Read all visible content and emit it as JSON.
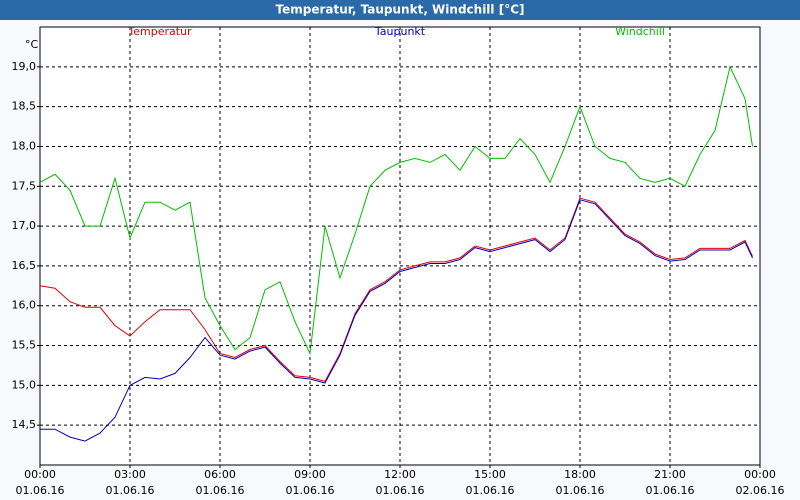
{
  "chart_data": {
    "type": "line",
    "title": "Temperatur, Taupunkt, Windchill [°C]",
    "y_unit": "°C",
    "x": [
      0,
      0.5,
      1,
      1.5,
      2,
      2.5,
      3,
      3.5,
      4,
      4.5,
      5,
      5.5,
      6,
      6.5,
      7,
      7.5,
      8,
      8.5,
      9,
      9.5,
      10,
      10.5,
      11,
      11.5,
      12,
      12.5,
      13,
      13.5,
      14,
      14.5,
      15,
      15.5,
      16,
      16.5,
      17,
      17.5,
      18,
      18.5,
      19,
      19.5,
      20,
      20.5,
      21,
      21.5,
      22,
      22.5,
      23,
      23.5,
      23.75
    ],
    "series": [
      {
        "name": "Temperatur",
        "color": "#e00000",
        "values": [
          16.25,
          16.22,
          16.05,
          15.98,
          15.98,
          15.75,
          15.62,
          15.8,
          15.95,
          15.95,
          15.95,
          15.7,
          15.4,
          15.35,
          15.45,
          15.5,
          15.3,
          15.12,
          15.1,
          15.05,
          15.4,
          15.9,
          16.2,
          16.3,
          16.45,
          16.5,
          16.55,
          16.55,
          16.6,
          16.75,
          16.7,
          16.75,
          16.8,
          16.85,
          16.7,
          16.85,
          17.35,
          17.3,
          17.1,
          16.9,
          16.8,
          16.65,
          16.58,
          16.6,
          16.72,
          16.72,
          16.72,
          16.82,
          16.62
        ]
      },
      {
        "name": "Taupunkt",
        "color": "#0000c0",
        "values": [
          14.45,
          14.45,
          14.35,
          14.3,
          14.4,
          14.6,
          15.0,
          15.1,
          15.08,
          15.15,
          15.35,
          15.6,
          15.38,
          15.33,
          15.43,
          15.48,
          15.28,
          15.1,
          15.08,
          15.03,
          15.38,
          15.88,
          16.18,
          16.28,
          16.43,
          16.48,
          16.53,
          16.53,
          16.58,
          16.73,
          16.68,
          16.73,
          16.78,
          16.83,
          16.68,
          16.83,
          17.33,
          17.28,
          17.08,
          16.88,
          16.78,
          16.63,
          16.56,
          16.58,
          16.7,
          16.7,
          16.7,
          16.8,
          16.6
        ]
      },
      {
        "name": "Windchill",
        "color": "#00c000",
        "values": [
          17.55,
          17.65,
          17.45,
          17.0,
          17.0,
          17.6,
          16.85,
          17.3,
          17.3,
          17.2,
          17.3,
          16.1,
          15.75,
          15.45,
          15.6,
          16.2,
          16.3,
          15.8,
          15.4,
          17.0,
          16.35,
          16.9,
          17.5,
          17.7,
          17.8,
          17.85,
          17.8,
          17.9,
          17.7,
          18.0,
          17.85,
          17.85,
          18.1,
          17.9,
          17.55,
          18.0,
          18.5,
          18.0,
          17.85,
          17.8,
          17.6,
          17.55,
          17.6,
          17.5,
          17.9,
          18.2,
          19.0,
          18.6,
          18.0
        ]
      }
    ],
    "xlim": [
      0,
      24
    ],
    "xticks": [
      {
        "value": 0,
        "label": "00:00",
        "date": "01.06.16"
      },
      {
        "value": 3,
        "label": "03:00",
        "date": "01.06.16"
      },
      {
        "value": 6,
        "label": "06:00",
        "date": "01.06.16"
      },
      {
        "value": 9,
        "label": "09:00",
        "date": "01.06.16"
      },
      {
        "value": 12,
        "label": "12:00",
        "date": "01.06.16"
      },
      {
        "value": 15,
        "label": "15:00",
        "date": "01.06.16"
      },
      {
        "value": 18,
        "label": "18:00",
        "date": "01.06.16"
      },
      {
        "value": 21,
        "label": "21:00",
        "date": "01.06.16"
      },
      {
        "value": 24,
        "label": "00:00",
        "date": "02.06.16"
      }
    ],
    "ylim": [
      14.0,
      19.5
    ],
    "yticks": [
      {
        "value": 14.5,
        "label": "14,5"
      },
      {
        "value": 15.0,
        "label": "15,0"
      },
      {
        "value": 15.5,
        "label": "15,5"
      },
      {
        "value": 16.0,
        "label": "16,0"
      },
      {
        "value": 16.5,
        "label": "16,5"
      },
      {
        "value": 17.0,
        "label": "17,0"
      },
      {
        "value": 17.5,
        "label": "17,5"
      },
      {
        "value": 18.0,
        "label": "18,0"
      },
      {
        "value": 18.5,
        "label": "18,5"
      },
      {
        "value": 19.0,
        "label": "19,0"
      }
    ],
    "grid": true
  }
}
